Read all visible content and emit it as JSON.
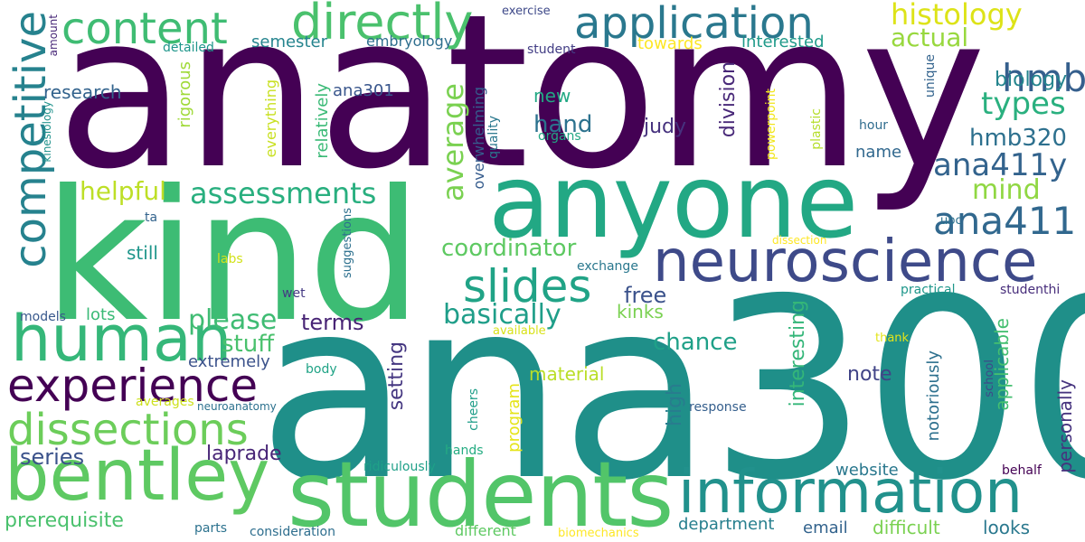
{
  "words": [
    {
      "text": "anatomy",
      "color": "#440154"
    },
    {
      "text": "ana300",
      "color": "#1f8f89"
    },
    {
      "text": "kind",
      "color": "#3dbc74"
    },
    {
      "text": "anyone",
      "color": "#22a884"
    },
    {
      "text": "students",
      "color": "#52c569"
    },
    {
      "text": "information",
      "color": "#21918c"
    },
    {
      "text": "neuroscience",
      "color": "#3e4a89"
    },
    {
      "text": "bentley",
      "color": "#5ec962"
    },
    {
      "text": "human",
      "color": "#35b779"
    },
    {
      "text": "directly",
      "color": "#4ac16d"
    },
    {
      "text": "application",
      "color": "#2a788e"
    },
    {
      "text": "content",
      "color": "#3fbc73"
    },
    {
      "text": "competitive",
      "color": "#26828e"
    },
    {
      "text": "experience",
      "color": "#440154"
    },
    {
      "text": "dissections",
      "color": "#6ccd5a"
    },
    {
      "text": "slides",
      "color": "#20a386"
    },
    {
      "text": "ana411",
      "color": "#31688e"
    },
    {
      "text": "hmb",
      "color": "#355f8d"
    },
    {
      "text": "histology",
      "color": "#dde318"
    },
    {
      "text": "actual",
      "color": "#98d83e"
    },
    {
      "text": "biology",
      "color": "#25858e"
    },
    {
      "text": "types",
      "color": "#2ab07f"
    },
    {
      "text": "hmb320",
      "color": "#2d708e"
    },
    {
      "text": "ana411y",
      "color": "#33638d"
    },
    {
      "text": "mind",
      "color": "#90d743"
    },
    {
      "text": "assessments",
      "color": "#29af7f"
    },
    {
      "text": "helpful",
      "color": "#bddf26"
    },
    {
      "text": "average",
      "color": "#7ad151"
    },
    {
      "text": "coordinator",
      "color": "#5ec962"
    },
    {
      "text": "basically",
      "color": "#1f9e89"
    },
    {
      "text": "please",
      "color": "#3fbc73"
    },
    {
      "text": "terms",
      "color": "#482475"
    },
    {
      "text": "stuff",
      "color": "#4ac16d"
    },
    {
      "text": "free",
      "color": "#3b528b"
    },
    {
      "text": "kinks",
      "color": "#7ad151"
    },
    {
      "text": "chance",
      "color": "#1fa088"
    },
    {
      "text": "hand",
      "color": "#2c728e"
    },
    {
      "text": "judy",
      "color": "#46327e"
    },
    {
      "text": "division",
      "color": "#482878"
    },
    {
      "text": "new",
      "color": "#22a884"
    },
    {
      "text": "research",
      "color": "#33638d"
    },
    {
      "text": "ana301",
      "color": "#39568c"
    },
    {
      "text": "semester",
      "color": "#25848e"
    },
    {
      "text": "embryology",
      "color": "#2e6e8e"
    },
    {
      "text": "interested",
      "color": "#1f9a8a"
    },
    {
      "text": "towards",
      "color": "#fde725"
    },
    {
      "text": "student",
      "color": "#433e85"
    },
    {
      "text": "exercise",
      "color": "#3e4989"
    },
    {
      "text": "amount",
      "color": "#482878"
    },
    {
      "text": "detailed",
      "color": "#1f968b"
    },
    {
      "text": "unique",
      "color": "#33638d"
    },
    {
      "text": "rigorous",
      "color": "#a0da39"
    },
    {
      "text": "everything",
      "color": "#c8e020"
    },
    {
      "text": "relatively",
      "color": "#3aba76"
    },
    {
      "text": "overwhelming",
      "color": "#365c8d"
    },
    {
      "text": "quality",
      "color": "#2a788e"
    },
    {
      "text": "organs",
      "color": "#22a884"
    },
    {
      "text": "powerpoint",
      "color": "#f1e51d"
    },
    {
      "text": "plastic",
      "color": "#b5de2b"
    },
    {
      "text": "hour",
      "color": "#2f6c8e"
    },
    {
      "text": "name",
      "color": "#31688e"
    },
    {
      "text": "kinesiology",
      "color": "#20928c"
    },
    {
      "text": "extremely",
      "color": "#3b528b"
    },
    {
      "text": "setting",
      "color": "#453781"
    },
    {
      "text": "interesting",
      "color": "#34b679"
    },
    {
      "text": "high",
      "color": "#287c8e"
    },
    {
      "text": "note",
      "color": "#414487"
    },
    {
      "text": "applicable",
      "color": "#44bf70"
    },
    {
      "text": "notoriously",
      "color": "#2d708e"
    },
    {
      "text": "personally",
      "color": "#46337e"
    },
    {
      "text": "material",
      "color": "#bade28"
    },
    {
      "text": "program",
      "color": "#e5e419"
    },
    {
      "text": "cheers",
      "color": "#1f9e89"
    },
    {
      "text": "response",
      "color": "#355f8d"
    },
    {
      "text": "thank",
      "color": "#e2e418"
    },
    {
      "text": "school",
      "color": "#3e4989"
    },
    {
      "text": "website",
      "color": "#2a788e"
    },
    {
      "text": "ubc",
      "color": "#2c718e"
    },
    {
      "text": "dissection",
      "color": "#fde725"
    },
    {
      "text": "practical",
      "color": "#1f978b"
    },
    {
      "text": "studenthi",
      "color": "#472d7b"
    },
    {
      "text": "exchange",
      "color": "#2a788e"
    },
    {
      "text": "still",
      "color": "#1f968b"
    },
    {
      "text": "labs",
      "color": "#d2e21b"
    },
    {
      "text": "ta",
      "color": "#33638d"
    },
    {
      "text": "suggestions",
      "color": "#2d708e"
    },
    {
      "text": "wet",
      "color": "#443983"
    },
    {
      "text": "models",
      "color": "#38588c"
    },
    {
      "text": "lots",
      "color": "#3aba76"
    },
    {
      "text": "available",
      "color": "#d8e219"
    },
    {
      "text": "body",
      "color": "#20a386"
    },
    {
      "text": "averages",
      "color": "#cde11d"
    },
    {
      "text": "neuroanatomy",
      "color": "#2c718e"
    },
    {
      "text": "series",
      "color": "#3b528b"
    },
    {
      "text": "laprade",
      "color": "#482677"
    },
    {
      "text": "hands",
      "color": "#25ac82"
    },
    {
      "text": "ridiculously",
      "color": "#1fa088"
    },
    {
      "text": "behalf",
      "color": "#440154"
    },
    {
      "text": "prerequisite",
      "color": "#4ac16d"
    },
    {
      "text": "parts",
      "color": "#2c728e"
    },
    {
      "text": "consideration",
      "color": "#2e6e8e"
    },
    {
      "text": "different",
      "color": "#5ec962"
    },
    {
      "text": "biomechanics",
      "color": "#fde725"
    },
    {
      "text": "department",
      "color": "#277f8e"
    },
    {
      "text": "email",
      "color": "#33638d"
    },
    {
      "text": "difficult",
      "color": "#7ad151"
    },
    {
      "text": "looks",
      "color": "#2a788e"
    }
  ]
}
